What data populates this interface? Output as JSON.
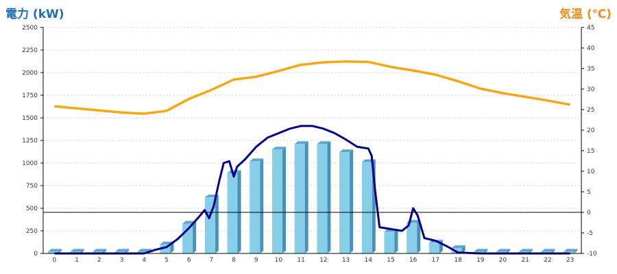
{
  "chart_data": {
    "type": "bar",
    "title": "",
    "ylabel_left": "電力 (kW)",
    "ylabel_right": "気温 (℃)",
    "categories": [
      "0",
      "1",
      "2",
      "3",
      "4",
      "5",
      "6",
      "7",
      "8",
      "9",
      "10",
      "11",
      "12",
      "13",
      "14",
      "15",
      "16",
      "17",
      "18",
      "19",
      "20",
      "21",
      "22",
      "23"
    ],
    "ylim_left": [
      0,
      2500
    ],
    "yticks_left": [
      "0",
      "250",
      "500",
      "750",
      "1000",
      "1250",
      "1500",
      "1750",
      "2000",
      "2250",
      "2500"
    ],
    "ylim_right": [
      -10,
      45
    ],
    "yticks_right": [
      "-10",
      "-5",
      "0",
      "5",
      "10",
      "15",
      "20",
      "25",
      "30",
      "35",
      "40",
      "45"
    ],
    "grid": true,
    "series": [
      {
        "name": "",
        "kind": "bar",
        "axis": "left",
        "color": "#87ceeb",
        "values": [
          20,
          20,
          20,
          20,
          20,
          100,
          330,
          620,
          890,
          1020,
          1150,
          1210,
          1210,
          1120,
          1010,
          240,
          340,
          120,
          60,
          20,
          20,
          20,
          20,
          20
        ]
      },
      {
        "name": "",
        "kind": "line",
        "axis": "left",
        "color": "#00008b",
        "points": [
          [
            0,
            0
          ],
          [
            4,
            0
          ],
          [
            4.5,
            40
          ],
          [
            5,
            70
          ],
          [
            5.5,
            160
          ],
          [
            6,
            280
          ],
          [
            6.5,
            420
          ],
          [
            6.7,
            480
          ],
          [
            6.9,
            390
          ],
          [
            7.1,
            520
          ],
          [
            7.35,
            800
          ],
          [
            7.55,
            1000
          ],
          [
            7.8,
            1020
          ],
          [
            8,
            850
          ],
          [
            8.15,
            960
          ],
          [
            8.5,
            1040
          ],
          [
            9,
            1180
          ],
          [
            9.5,
            1280
          ],
          [
            10,
            1330
          ],
          [
            10.5,
            1380
          ],
          [
            11,
            1410
          ],
          [
            11.5,
            1410
          ],
          [
            12,
            1380
          ],
          [
            12.5,
            1330
          ],
          [
            13,
            1260
          ],
          [
            13.5,
            1180
          ],
          [
            14,
            1160
          ],
          [
            14.15,
            1080
          ],
          [
            14.3,
            700
          ],
          [
            14.5,
            290
          ],
          [
            15,
            270
          ],
          [
            15.5,
            250
          ],
          [
            15.8,
            310
          ],
          [
            16,
            500
          ],
          [
            16.2,
            420
          ],
          [
            16.5,
            170
          ],
          [
            17,
            140
          ],
          [
            17.5,
            80
          ],
          [
            18,
            10
          ],
          [
            19,
            0
          ],
          [
            23,
            0
          ]
        ]
      },
      {
        "name": "",
        "kind": "line",
        "axis": "right",
        "color": "#f5a614",
        "values": [
          25.8,
          25.3,
          24.8,
          24.3,
          24.0,
          24.7,
          27.6,
          29.8,
          32.3,
          33.0,
          34.4,
          35.9,
          36.5,
          36.7,
          36.6,
          35.4,
          34.5,
          33.5,
          31.9,
          30.1,
          29.0,
          28.1,
          27.2,
          26.2
        ]
      }
    ]
  }
}
